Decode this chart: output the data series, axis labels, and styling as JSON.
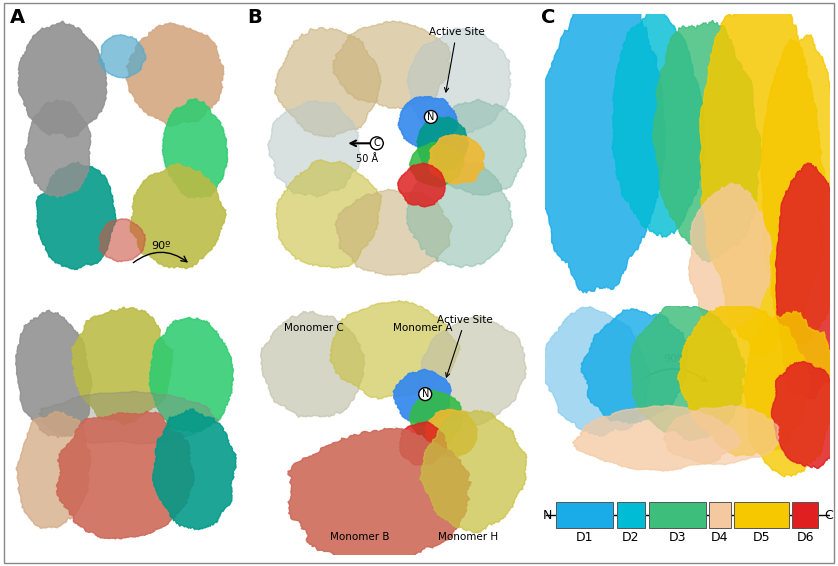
{
  "panel_label_fontsize": 14,
  "panel_label_fontweight": "bold",
  "domain_diagram": {
    "domains": [
      "D1",
      "D2",
      "D3",
      "D4",
      "D5",
      "D6"
    ],
    "colors": [
      "#1AACE8",
      "#00BCD4",
      "#3DBE7A",
      "#F5C9A0",
      "#F5C800",
      "#E02020"
    ],
    "widths": [
      2.2,
      1.1,
      2.2,
      0.85,
      2.1,
      1.0
    ],
    "n_label": "N",
    "c_label": "C",
    "label_fontsize": 9,
    "domain_fontsize": 9
  },
  "bg_color": "#FFFFFF",
  "rotation_symbol": "90º"
}
